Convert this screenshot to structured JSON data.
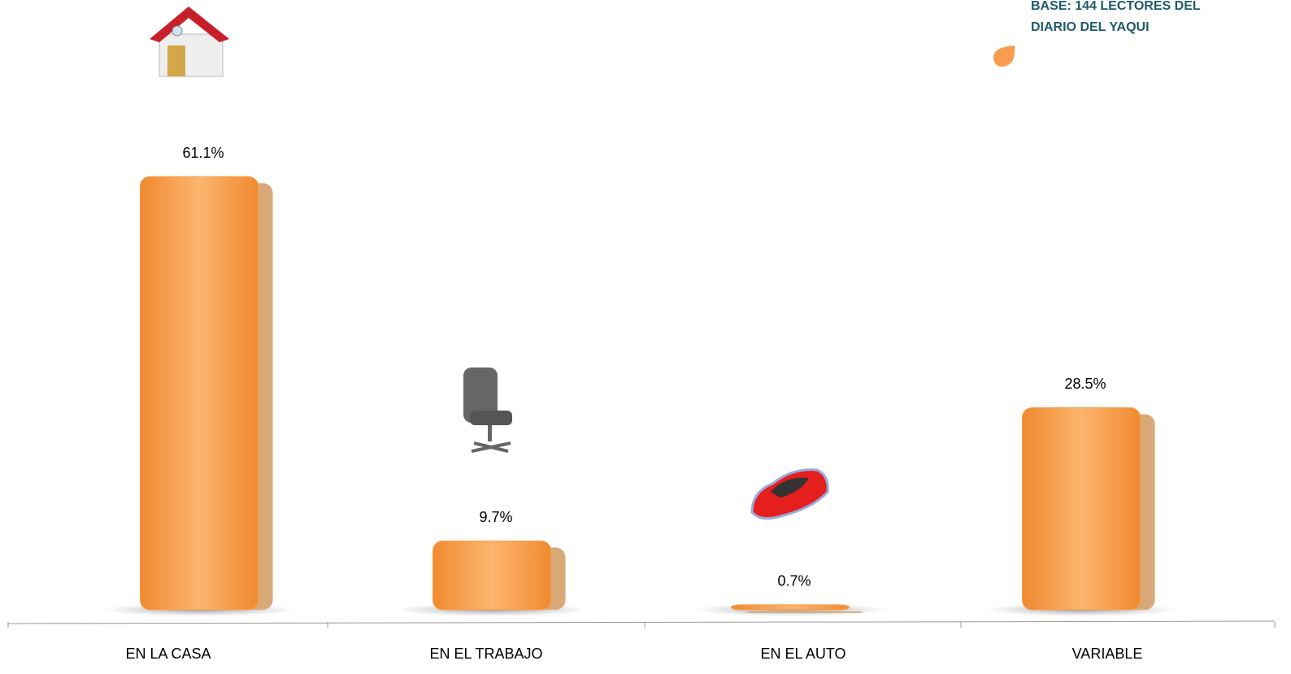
{
  "chart_data": {
    "type": "bar",
    "annotation": [
      "BASE:  144 LECTORES DEL",
      "DIARIO DEL YAQUI"
    ],
    "categories": [
      "EN LA CASA",
      "EN EL TRABAJO",
      "EN EL AUTO",
      "VARIABLE"
    ],
    "values": [
      61.1,
      9.7,
      0.7,
      28.5
    ],
    "value_labels": [
      "61.1%",
      "9.7%",
      "0.7%",
      "28.5%"
    ],
    "color": "#f79d4d"
  }
}
